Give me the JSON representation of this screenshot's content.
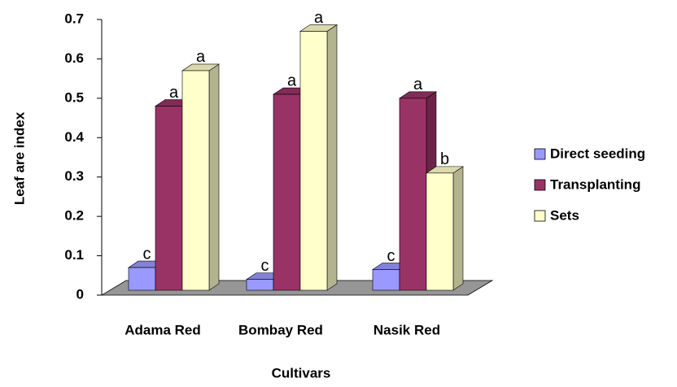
{
  "chart_data": {
    "type": "bar3d",
    "categories": [
      "Adama Red",
      "Bombay Red",
      "Nasik Red"
    ],
    "series": [
      {
        "name": "Direct seeding",
        "color": "#9999ff",
        "values": [
          0.07,
          0.04,
          0.065
        ],
        "labels": [
          "c",
          "c",
          "c"
        ]
      },
      {
        "name": "Transplanting",
        "color": "#993366",
        "values": [
          0.48,
          0.51,
          0.5
        ],
        "labels": [
          "a",
          "a",
          "a"
        ]
      },
      {
        "name": "Sets",
        "color": "#ffffcc",
        "values": [
          0.57,
          0.67,
          0.31
        ],
        "labels": [
          "a",
          "a",
          "b"
        ]
      }
    ],
    "ylim": [
      0,
      0.7
    ],
    "yticks": [
      {
        "value": 0,
        "label": "0"
      },
      0.1,
      0.2,
      0.3,
      0.4,
      0.5,
      0.6,
      0.7
    ],
    "ylabel": "Leaf are index",
    "xlabel": "Cultivars",
    "legend": "right"
  }
}
